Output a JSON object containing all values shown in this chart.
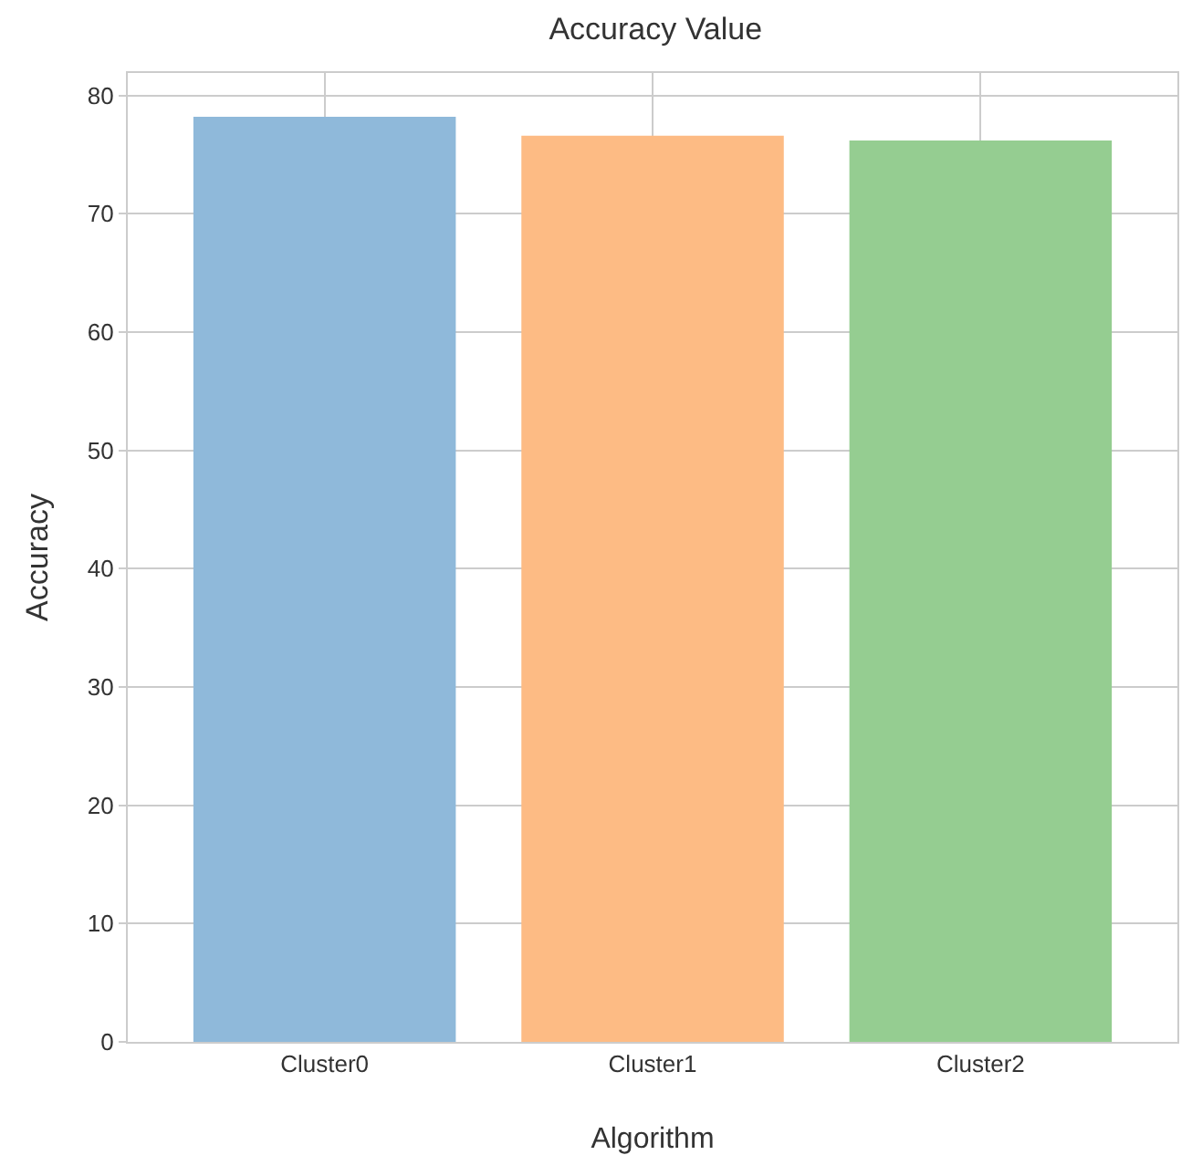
{
  "chart_data": {
    "type": "bar",
    "title": "Accuracy Value",
    "xlabel": "Algorithm",
    "ylabel": "Accuracy",
    "categories": [
      "Cluster0",
      "Cluster1",
      "Cluster2"
    ],
    "values": [
      78.2,
      76.6,
      76.2
    ],
    "colors": [
      "#8fb9da",
      "#fdbb84",
      "#95cd91"
    ],
    "ylim": [
      0,
      81.9
    ],
    "yticks": [
      0,
      10,
      20,
      30,
      40,
      50,
      60,
      70,
      80
    ],
    "grid": true
  }
}
